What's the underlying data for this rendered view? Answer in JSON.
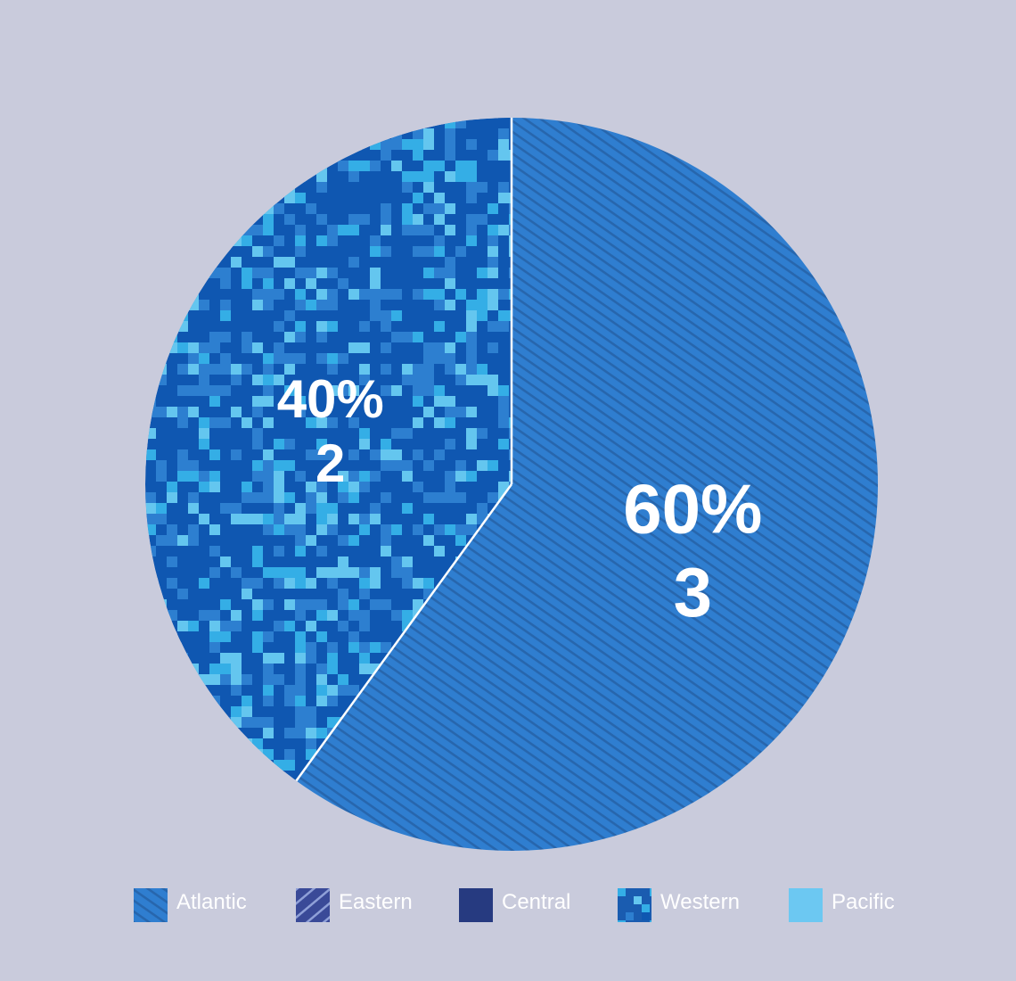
{
  "chart_data": {
    "type": "pie",
    "title": "",
    "slices": [
      {
        "name": "Atlantic",
        "value": 3,
        "percent": "60%",
        "count": "3",
        "pattern": "diagonal-stripes"
      },
      {
        "name": "Western",
        "value": 2,
        "percent": "40%",
        "count": "2",
        "pattern": "digital-camo"
      }
    ],
    "legend": {
      "placement": "bottom",
      "items": [
        {
          "label": "Atlantic",
          "pattern": "diagonal-stripes",
          "color": "#2f7ed0"
        },
        {
          "label": "Eastern",
          "pattern": "wide-diagonal",
          "color": "#3a4a98"
        },
        {
          "label": "Central",
          "pattern": "solid",
          "color": "#263a80"
        },
        {
          "label": "Western",
          "pattern": "digital-camo",
          "color": "#1a5cb0"
        },
        {
          "label": "Pacific",
          "pattern": "solid",
          "color": "#6cc8f2"
        }
      ]
    },
    "colors": {
      "background": "#c9cbdc",
      "atlantic_base": "#2f7ed0",
      "atlantic_stripe": "#2766ad",
      "camo_dark": "#0f57b1",
      "camo_mid": "#2d7fd0",
      "camo_light": "#34aee6",
      "camo_bright": "#64c6ef",
      "eastern": "#3a4a98",
      "central": "#263a80",
      "pacific": "#6cc8f2",
      "label_text": "#ffffff"
    }
  }
}
